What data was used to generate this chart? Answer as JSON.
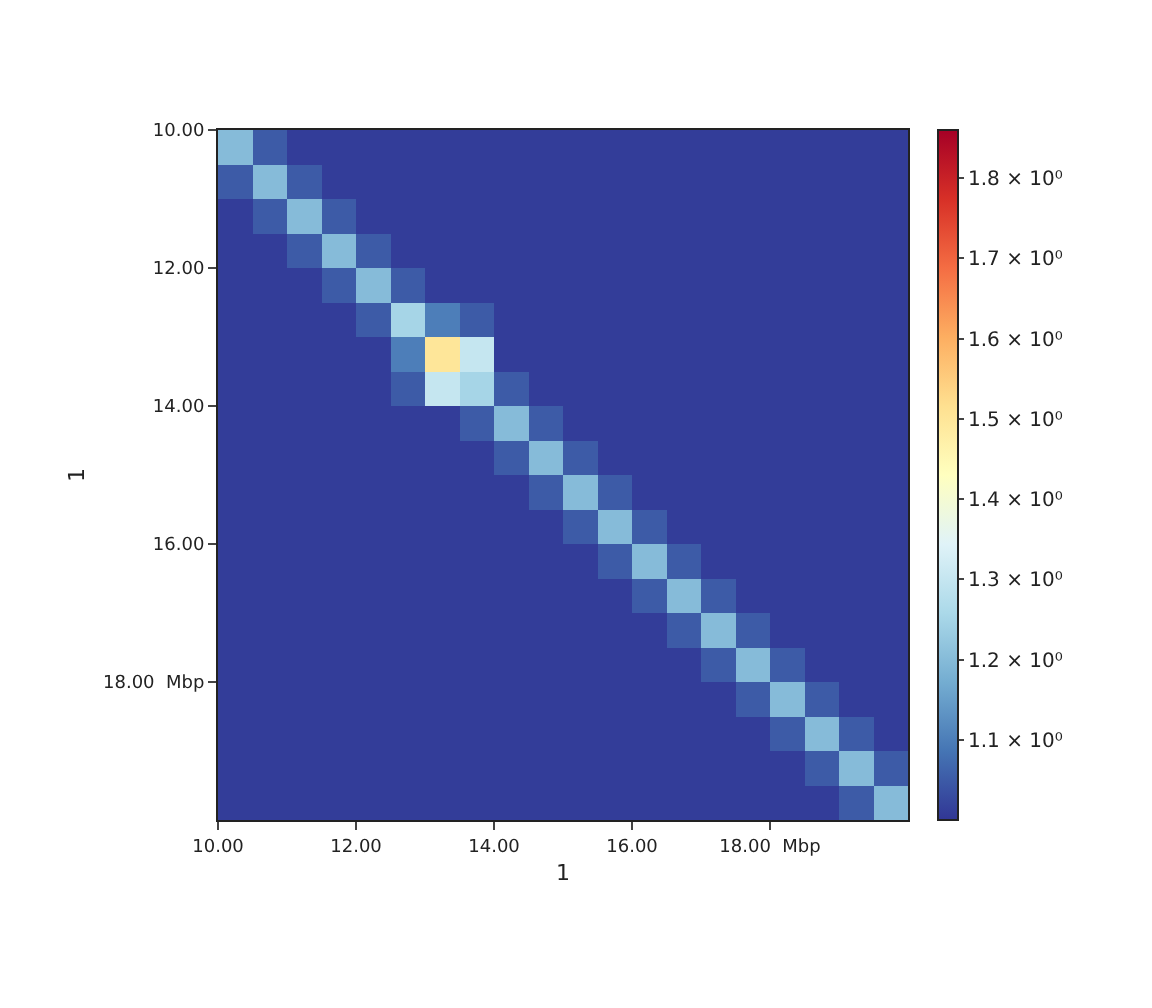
{
  "chart_data": {
    "type": "heatmap",
    "xlabel": "1",
    "ylabel": "1",
    "x": [
      10.25,
      10.75,
      11.25,
      11.75,
      12.25,
      12.75,
      13.25,
      13.75,
      14.25,
      14.75,
      15.25,
      15.75,
      16.25,
      16.75,
      17.25,
      17.75,
      18.25,
      18.75,
      19.25,
      19.75
    ],
    "y": [
      10.25,
      10.75,
      11.25,
      11.75,
      12.25,
      12.75,
      13.25,
      13.75,
      14.25,
      14.75,
      15.25,
      15.75,
      16.25,
      16.75,
      17.25,
      17.75,
      18.25,
      18.75,
      19.25,
      19.75
    ],
    "cells": [
      [
        1.2,
        1.05,
        1.01,
        1.01,
        1.01,
        1.01,
        1.01,
        1.01,
        1.01,
        1.01,
        1.01,
        1.01,
        1.01,
        1.01,
        1.01,
        1.01,
        1.01,
        1.01,
        1.01,
        1.01
      ],
      [
        1.05,
        1.2,
        1.05,
        1.01,
        1.01,
        1.01,
        1.01,
        1.01,
        1.01,
        1.01,
        1.01,
        1.01,
        1.01,
        1.01,
        1.01,
        1.01,
        1.01,
        1.01,
        1.01,
        1.01
      ],
      [
        1.01,
        1.05,
        1.2,
        1.05,
        1.01,
        1.01,
        1.01,
        1.01,
        1.01,
        1.01,
        1.01,
        1.01,
        1.01,
        1.01,
        1.01,
        1.01,
        1.01,
        1.01,
        1.01,
        1.01
      ],
      [
        1.01,
        1.01,
        1.05,
        1.2,
        1.05,
        1.01,
        1.01,
        1.01,
        1.01,
        1.01,
        1.01,
        1.01,
        1.01,
        1.01,
        1.01,
        1.01,
        1.01,
        1.01,
        1.01,
        1.01
      ],
      [
        1.01,
        1.01,
        1.01,
        1.05,
        1.2,
        1.05,
        1.01,
        1.01,
        1.01,
        1.01,
        1.01,
        1.01,
        1.01,
        1.01,
        1.01,
        1.01,
        1.01,
        1.01,
        1.01,
        1.01
      ],
      [
        1.01,
        1.01,
        1.01,
        1.01,
        1.05,
        1.25,
        1.1,
        1.05,
        1.01,
        1.01,
        1.01,
        1.01,
        1.01,
        1.01,
        1.01,
        1.01,
        1.01,
        1.01,
        1.01,
        1.01
      ],
      [
        1.01,
        1.01,
        1.01,
        1.01,
        1.01,
        1.1,
        1.5,
        1.3,
        1.01,
        1.01,
        1.01,
        1.01,
        1.01,
        1.01,
        1.01,
        1.01,
        1.01,
        1.01,
        1.01,
        1.01
      ],
      [
        1.01,
        1.01,
        1.01,
        1.01,
        1.01,
        1.05,
        1.3,
        1.25,
        1.05,
        1.01,
        1.01,
        1.01,
        1.01,
        1.01,
        1.01,
        1.01,
        1.01,
        1.01,
        1.01,
        1.01
      ],
      [
        1.01,
        1.01,
        1.01,
        1.01,
        1.01,
        1.01,
        1.01,
        1.05,
        1.2,
        1.05,
        1.01,
        1.01,
        1.01,
        1.01,
        1.01,
        1.01,
        1.01,
        1.01,
        1.01,
        1.01
      ],
      [
        1.01,
        1.01,
        1.01,
        1.01,
        1.01,
        1.01,
        1.01,
        1.01,
        1.05,
        1.2,
        1.05,
        1.01,
        1.01,
        1.01,
        1.01,
        1.01,
        1.01,
        1.01,
        1.01,
        1.01
      ],
      [
        1.01,
        1.01,
        1.01,
        1.01,
        1.01,
        1.01,
        1.01,
        1.01,
        1.01,
        1.05,
        1.2,
        1.05,
        1.01,
        1.01,
        1.01,
        1.01,
        1.01,
        1.01,
        1.01,
        1.01
      ],
      [
        1.01,
        1.01,
        1.01,
        1.01,
        1.01,
        1.01,
        1.01,
        1.01,
        1.01,
        1.01,
        1.05,
        1.2,
        1.05,
        1.01,
        1.01,
        1.01,
        1.01,
        1.01,
        1.01,
        1.01
      ],
      [
        1.01,
        1.01,
        1.01,
        1.01,
        1.01,
        1.01,
        1.01,
        1.01,
        1.01,
        1.01,
        1.01,
        1.05,
        1.2,
        1.05,
        1.01,
        1.01,
        1.01,
        1.01,
        1.01,
        1.01
      ],
      [
        1.01,
        1.01,
        1.01,
        1.01,
        1.01,
        1.01,
        1.01,
        1.01,
        1.01,
        1.01,
        1.01,
        1.01,
        1.05,
        1.2,
        1.05,
        1.01,
        1.01,
        1.01,
        1.01,
        1.01
      ],
      [
        1.01,
        1.01,
        1.01,
        1.01,
        1.01,
        1.01,
        1.01,
        1.01,
        1.01,
        1.01,
        1.01,
        1.01,
        1.01,
        1.05,
        1.2,
        1.05,
        1.01,
        1.01,
        1.01,
        1.01
      ],
      [
        1.01,
        1.01,
        1.01,
        1.01,
        1.01,
        1.01,
        1.01,
        1.01,
        1.01,
        1.01,
        1.01,
        1.01,
        1.01,
        1.01,
        1.05,
        1.2,
        1.05,
        1.01,
        1.01,
        1.01
      ],
      [
        1.01,
        1.01,
        1.01,
        1.01,
        1.01,
        1.01,
        1.01,
        1.01,
        1.01,
        1.01,
        1.01,
        1.01,
        1.01,
        1.01,
        1.01,
        1.05,
        1.2,
        1.05,
        1.01,
        1.01
      ],
      [
        1.01,
        1.01,
        1.01,
        1.01,
        1.01,
        1.01,
        1.01,
        1.01,
        1.01,
        1.01,
        1.01,
        1.01,
        1.01,
        1.01,
        1.01,
        1.01,
        1.05,
        1.2,
        1.05,
        1.01
      ],
      [
        1.01,
        1.01,
        1.01,
        1.01,
        1.01,
        1.01,
        1.01,
        1.01,
        1.01,
        1.01,
        1.01,
        1.01,
        1.01,
        1.01,
        1.01,
        1.01,
        1.01,
        1.05,
        1.2,
        1.05
      ],
      [
        1.01,
        1.01,
        1.01,
        1.01,
        1.01,
        1.01,
        1.01,
        1.01,
        1.01,
        1.01,
        1.01,
        1.01,
        1.01,
        1.01,
        1.01,
        1.01,
        1.01,
        1.01,
        1.05,
        1.2
      ]
    ],
    "xlim": [
      10,
      20
    ],
    "ylim": [
      20,
      10
    ],
    "xticks": [
      {
        "value": 10,
        "label": "10.00"
      },
      {
        "value": 12,
        "label": "12.00"
      },
      {
        "value": 14,
        "label": "14.00"
      },
      {
        "value": 16,
        "label": "16.00"
      },
      {
        "value": 18,
        "label": "18.00  Mbp"
      }
    ],
    "yticks": [
      {
        "value": 10,
        "label": "10.00"
      },
      {
        "value": 12,
        "label": "12.00"
      },
      {
        "value": 14,
        "label": "14.00"
      },
      {
        "value": 16,
        "label": "16.00"
      },
      {
        "value": 18,
        "label": "18.00  Mbp"
      }
    ],
    "clim": [
      1.0,
      1.86
    ],
    "cticks": [
      {
        "value": 1.1,
        "label": "1.1 × 10⁰"
      },
      {
        "value": 1.2,
        "label": "1.2 × 10⁰"
      },
      {
        "value": 1.3,
        "label": "1.3 × 10⁰"
      },
      {
        "value": 1.4,
        "label": "1.4 × 10⁰"
      },
      {
        "value": 1.5,
        "label": "1.5 × 10⁰"
      },
      {
        "value": 1.6,
        "label": "1.6 × 10⁰"
      },
      {
        "value": 1.7,
        "label": "1.7 × 10⁰"
      },
      {
        "value": 1.8,
        "label": "1.8 × 10⁰"
      }
    ]
  }
}
